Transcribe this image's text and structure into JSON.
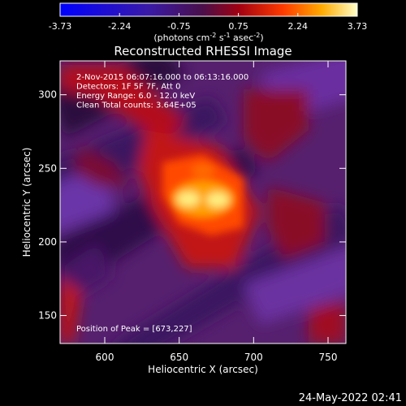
{
  "chart_data": {
    "type": "heatmap",
    "title": "Reconstructed RHESSI Image",
    "xlabel": "Heliocentric X (arcsec)",
    "ylabel": "Heliocentric Y (arcsec)",
    "xlim": [
      570,
      762
    ],
    "ylim": [
      131,
      323
    ],
    "xticks": [
      600,
      650,
      700,
      750
    ],
    "yticks": [
      150,
      200,
      250,
      300
    ],
    "colorbar": {
      "ticks": [
        "-3.73",
        "-2.24",
        "-0.75",
        "0.75",
        "2.24",
        "3.73"
      ],
      "unit_text": "(photons cm",
      "unit_sup1": "-2",
      "unit_mid": " s",
      "unit_sup2": "-1",
      "unit_mid2": " asec",
      "unit_sup3": "-2",
      "unit_end": ")",
      "range": [
        -3.73,
        3.73
      ]
    },
    "annotations": [
      " 2-Nov-2015 06:07:16.000 to 06:13:16.000",
      "Detectors: 1F 5F 7F, Att 0",
      "Energy Range: 6.0 - 12.0 keV",
      "Clean    Total counts: 3.64E+05"
    ],
    "peak_label": "Position of Peak = [673,227]",
    "peak": [
      673,
      227
    ],
    "grid": false
  },
  "footer_date": "24-May-2022 02:41"
}
